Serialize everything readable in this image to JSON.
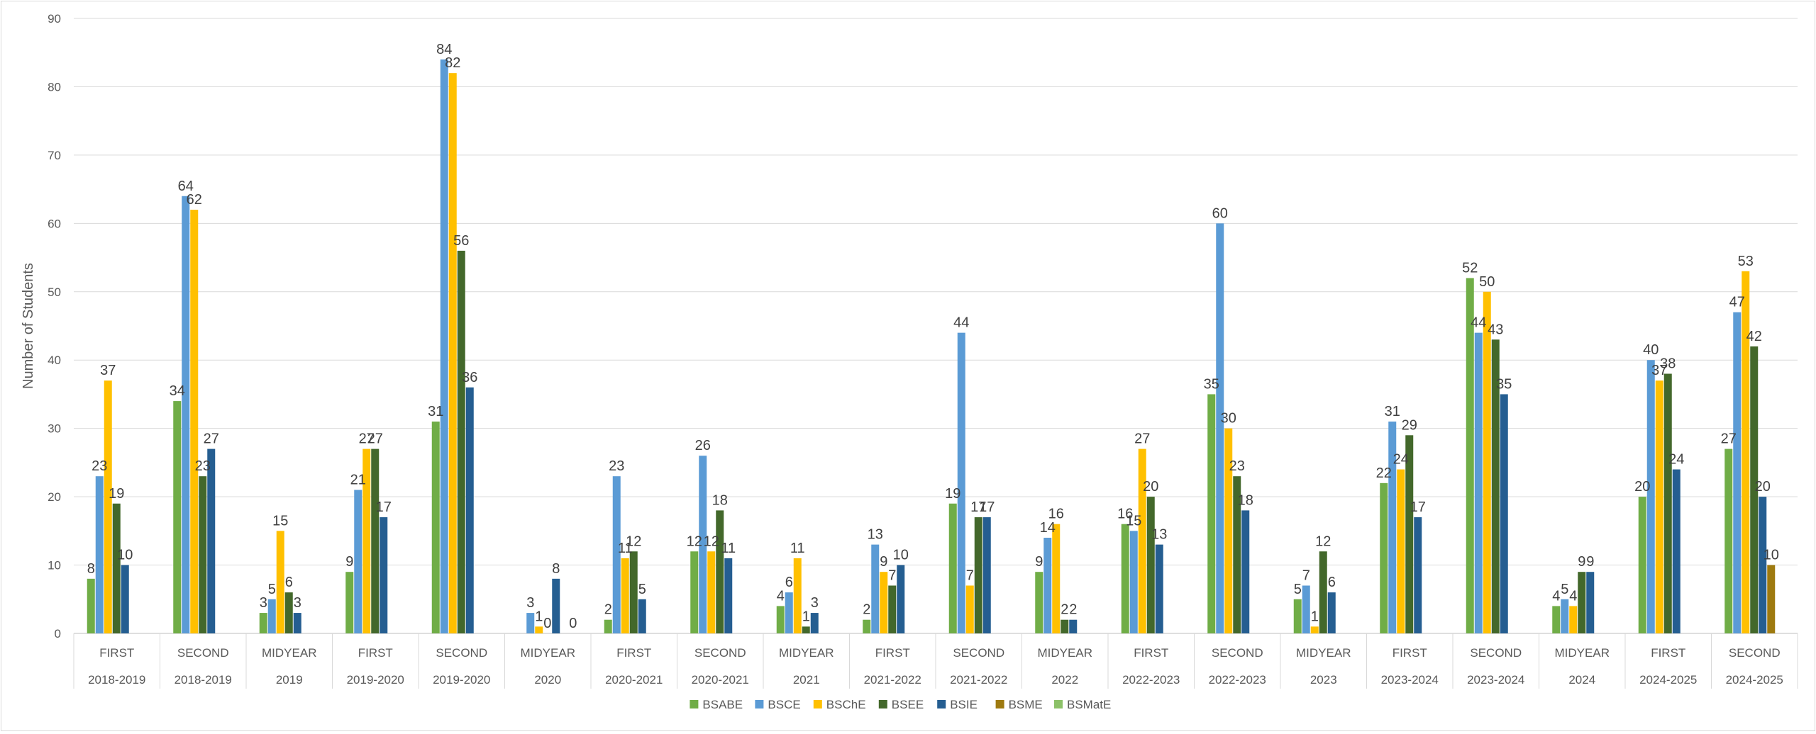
{
  "chart_data": {
    "type": "bar",
    "ylabel": "Number of Students",
    "ylim": [
      0,
      90
    ],
    "ytick_step": 10,
    "grid": "horizontal",
    "legend_position": "bottom",
    "categories": [
      {
        "term": "FIRST",
        "year": "2018-2019"
      },
      {
        "term": "SECOND",
        "year": "2018-2019"
      },
      {
        "term": "MIDYEAR",
        "year": "2019"
      },
      {
        "term": "FIRST",
        "year": "2019-2020"
      },
      {
        "term": "SECOND",
        "year": "2019-2020"
      },
      {
        "term": "MIDYEAR",
        "year": "2020"
      },
      {
        "term": "FIRST",
        "year": "2020-2021"
      },
      {
        "term": "SECOND",
        "year": "2020-2021"
      },
      {
        "term": "MIDYEAR",
        "year": "2021"
      },
      {
        "term": "FIRST",
        "year": "2021-2022"
      },
      {
        "term": "SECOND",
        "year": "2021-2022"
      },
      {
        "term": "MIDYEAR",
        "year": "2022"
      },
      {
        "term": "FIRST",
        "year": "2022-2023"
      },
      {
        "term": "SECOND",
        "year": "2022-2023"
      },
      {
        "term": "MIDYEAR",
        "year": "2023"
      },
      {
        "term": "FIRST",
        "year": "2023-2024"
      },
      {
        "term": "SECOND",
        "year": "2023-2024"
      },
      {
        "term": "MIDYEAR",
        "year": "2024"
      },
      {
        "term": "FIRST",
        "year": "2024-2025"
      },
      {
        "term": "SECOND",
        "year": "2024-2025"
      }
    ],
    "series": [
      {
        "name": "BSABE",
        "color": "#70ad47",
        "values": [
          8,
          34,
          3,
          9,
          31,
          null,
          2,
          12,
          4,
          2,
          19,
          9,
          16,
          35,
          5,
          22,
          52,
          4,
          20,
          27
        ]
      },
      {
        "name": "BSCE",
        "color": "#5b9bd5",
        "values": [
          23,
          64,
          5,
          21,
          84,
          3,
          23,
          26,
          6,
          13,
          44,
          14,
          15,
          60,
          7,
          31,
          44,
          5,
          40,
          47
        ]
      },
      {
        "name": "BSChE",
        "color": "#ffc000",
        "values": [
          37,
          62,
          15,
          27,
          82,
          1,
          11,
          12,
          11,
          9,
          7,
          16,
          27,
          30,
          1,
          24,
          50,
          4,
          37,
          53
        ]
      },
      {
        "name": "BSEE",
        "color": "#43682b",
        "values": [
          19,
          23,
          6,
          27,
          56,
          0,
          12,
          18,
          1,
          7,
          17,
          2,
          20,
          23,
          12,
          29,
          43,
          9,
          38,
          42
        ]
      },
      {
        "name": "BSIE",
        "color": "#255e91",
        "values": [
          10,
          27,
          3,
          17,
          36,
          8,
          5,
          11,
          3,
          10,
          17,
          2,
          13,
          18,
          6,
          17,
          35,
          9,
          24,
          20
        ]
      },
      {
        "name": "BSME",
        "color": "#9e7a0f",
        "values": [
          null,
          null,
          null,
          null,
          null,
          null,
          null,
          null,
          null,
          null,
          null,
          null,
          null,
          null,
          null,
          null,
          null,
          null,
          null,
          10
        ]
      },
      {
        "name": "BSMatE",
        "color": "#8cc168",
        "values": [
          null,
          null,
          null,
          null,
          null,
          0,
          null,
          null,
          null,
          null,
          null,
          null,
          null,
          null,
          null,
          null,
          null,
          null,
          null,
          null
        ]
      }
    ]
  }
}
